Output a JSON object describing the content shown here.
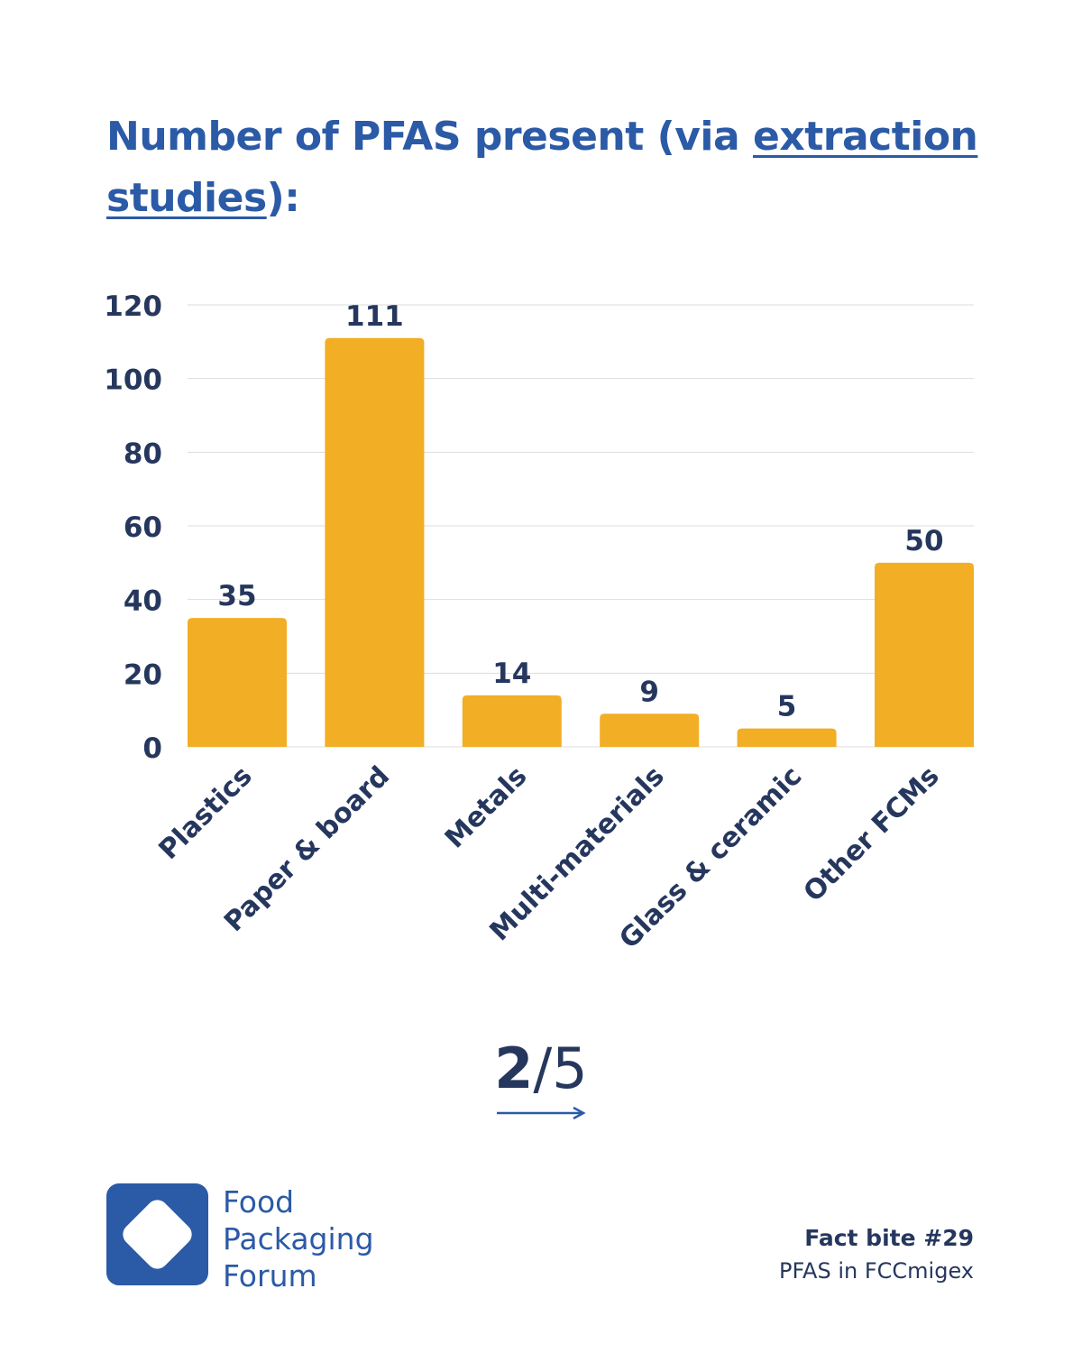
{
  "title": {
    "part1": "Number of PFAS present (via ",
    "link": "extraction studies",
    "part2": "):"
  },
  "chart_data": {
    "type": "bar",
    "categories": [
      "Plastics",
      "Paper & board",
      "Metals",
      "Multi-materials",
      "Glass & ceramic",
      "Other FCMs"
    ],
    "values": [
      35,
      111,
      14,
      9,
      5,
      50
    ],
    "title": "Number of PFAS present (via extraction studies):",
    "xlabel": "",
    "ylabel": "",
    "ylim": [
      0,
      120
    ],
    "yticks": [
      0,
      20,
      40,
      60,
      80,
      100,
      120
    ],
    "grid": true,
    "data_labels": true
  },
  "pager": {
    "current": "2",
    "total": "/5"
  },
  "brand": {
    "line1": "Food",
    "line2": "Packaging",
    "line3": "Forum"
  },
  "footer": {
    "fact_bite": "Fact bite #29",
    "subtitle": "PFAS in FCCmigex"
  },
  "colors": {
    "bar": "#f2ae24",
    "title": "#2b5aa6",
    "text": "#26375e",
    "grid": "#dddddd",
    "logo": "#2b5aa6"
  },
  "icons": {
    "arrow": "right-arrow-icon",
    "logo": "diamond-logo-icon"
  }
}
